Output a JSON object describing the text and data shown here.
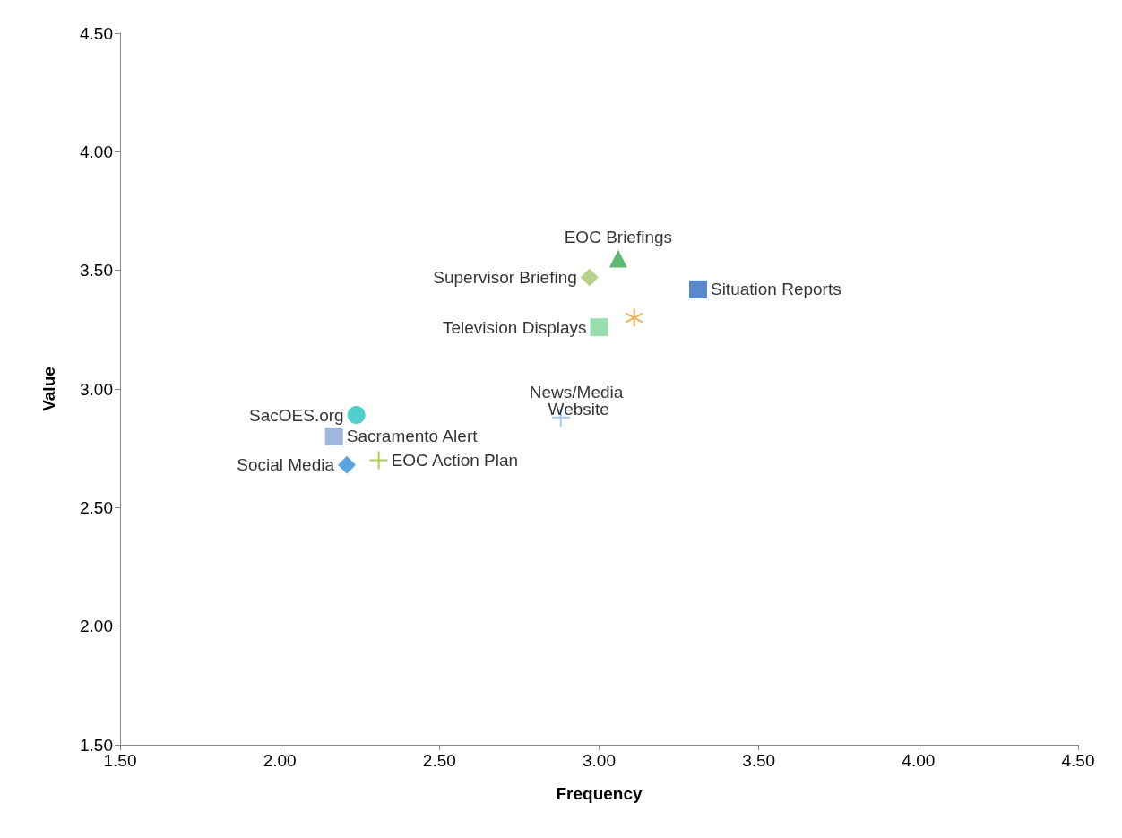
{
  "chart_data": {
    "type": "scatter",
    "xlabel": "Frequency",
    "ylabel": "Value",
    "xlim": [
      1.5,
      4.5
    ],
    "ylim": [
      1.5,
      4.5
    ],
    "xticks": [
      {
        "value": 1.5,
        "label": "1.50"
      },
      {
        "value": 2,
        "label": "2.00"
      },
      {
        "value": 2.5,
        "label": "2.50"
      },
      {
        "value": 3,
        "label": "3.00"
      },
      {
        "value": 3.5,
        "label": "3.50"
      },
      {
        "value": 4,
        "label": "4.00"
      },
      {
        "value": 4.5,
        "label": "4.50"
      }
    ],
    "yticks": [
      {
        "value": 1.5,
        "label": "1.50"
      },
      {
        "value": 2,
        "label": "2.00"
      },
      {
        "value": 2.5,
        "label": "2.50"
      },
      {
        "value": 3,
        "label": "3.00"
      },
      {
        "value": 3.5,
        "label": "3.50"
      },
      {
        "value": 4,
        "label": "4.00"
      },
      {
        "value": 4.5,
        "label": "4.50"
      }
    ],
    "grid": false,
    "legend": false,
    "series": [
      {
        "name": "EOC Briefings",
        "color": "#3aa655",
        "marker": "triangle",
        "x": [
          3.06
        ],
        "values": [
          3.55
        ]
      },
      {
        "name": "Supervisor Briefing",
        "color": "#a3c86a",
        "marker": "diamond",
        "x": [
          2.97
        ],
        "values": [
          3.47
        ]
      },
      {
        "name": "Situation Reports",
        "color": "#2e6bbf",
        "marker": "square",
        "x": [
          3.31
        ],
        "values": [
          3.42
        ]
      },
      {
        "color": "#e8a23a",
        "marker": "star",
        "x": [
          3.11
        ],
        "values": [
          3.3
        ]
      },
      {
        "name": "Television Displays",
        "color": "#7fd49a",
        "marker": "square",
        "x": [
          3.0
        ],
        "values": [
          3.26
        ]
      },
      {
        "name": "SacOES.org",
        "color": "#22c4c0",
        "marker": "circle",
        "x": [
          2.24
        ],
        "values": [
          2.89
        ]
      },
      {
        "name": "Sacramento Alert",
        "color": "#8aa5d8",
        "marker": "square",
        "x": [
          2.17
        ],
        "values": [
          2.8
        ]
      },
      {
        "name": "News/Media Website",
        "color": "#8cc0ea",
        "marker": "cross",
        "x": [
          2.88
        ],
        "values": [
          2.88
        ]
      },
      {
        "name": "Social Media",
        "color": "#2f8fdc",
        "marker": "diamond",
        "x": [
          2.21
        ],
        "values": [
          2.68
        ]
      },
      {
        "name": "EOC Action Plan",
        "color": "#9bbf2e",
        "marker": "cross",
        "x": [
          2.31
        ],
        "values": [
          2.7
        ]
      }
    ]
  }
}
